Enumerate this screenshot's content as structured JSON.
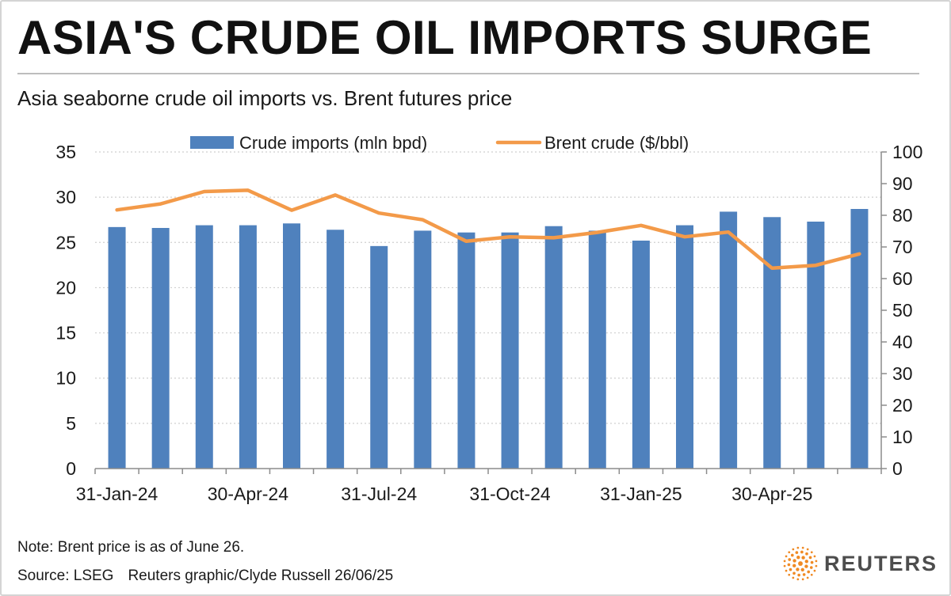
{
  "header": {
    "title": "ASIA'S CRUDE OIL IMPORTS SURGE",
    "subtitle": "Asia seaborne crude oil imports vs. Brent futures price"
  },
  "footer": {
    "note": "Note: Brent price is as of June 26.",
    "source": "Source: LSEG",
    "credit": "Reuters graphic/Clyde Russell 26/06/25",
    "brand": "REUTERS",
    "brand_icon": "reuters-dot-sphere-icon"
  },
  "colors": {
    "bar": "#4f81bd",
    "line": "#f39a49",
    "text": "#1a1a1a",
    "grid": "#cfcfcf",
    "axis": "#8c8c8c",
    "brand_orange": "#f08a24"
  },
  "chart_data": {
    "type": "bar+line",
    "title": "",
    "xlabel": "",
    "ylabel": "",
    "x": [
      "Jan-24",
      "Feb-24",
      "Mar-24",
      "Apr-24",
      "May-24",
      "Jun-24",
      "Jul-24",
      "Aug-24",
      "Sep-24",
      "Oct-24",
      "Nov-24",
      "Dec-24",
      "Jan-25",
      "Feb-25",
      "Mar-25",
      "Apr-25",
      "May-25",
      "Jun-25"
    ],
    "x_tick_labels": [
      "31-Jan-24",
      "30-Apr-24",
      "31-Jul-24",
      "31-Oct-24",
      "31-Jan-25",
      "30-Apr-25"
    ],
    "x_tick_index": [
      0,
      3,
      6,
      9,
      12,
      15
    ],
    "series": [
      {
        "name": "Crude imports (mln bpd)",
        "type": "bar",
        "axis": "left",
        "values": [
          26.7,
          26.6,
          26.9,
          26.9,
          27.1,
          26.4,
          24.6,
          26.3,
          26.1,
          26.1,
          26.8,
          26.3,
          25.2,
          26.9,
          28.4,
          27.8,
          27.3,
          28.7
        ]
      },
      {
        "name": "Brent crude ($/bbl)",
        "type": "line",
        "axis": "right",
        "values": [
          81.7,
          83.6,
          87.5,
          87.9,
          81.6,
          86.4,
          80.7,
          78.6,
          71.8,
          73.2,
          72.9,
          74.6,
          76.8,
          73.2,
          74.7,
          63.3,
          64.2,
          67.8
        ]
      }
    ],
    "y_left": {
      "min": 0,
      "max": 35,
      "ticks": [
        0,
        5,
        10,
        15,
        20,
        25,
        30,
        35
      ]
    },
    "y_right": {
      "min": 0,
      "max": 100,
      "ticks": [
        0,
        10,
        20,
        30,
        40,
        50,
        60,
        70,
        80,
        90,
        100
      ]
    },
    "grid": "horizontal-dotted",
    "legend": "top-center"
  }
}
